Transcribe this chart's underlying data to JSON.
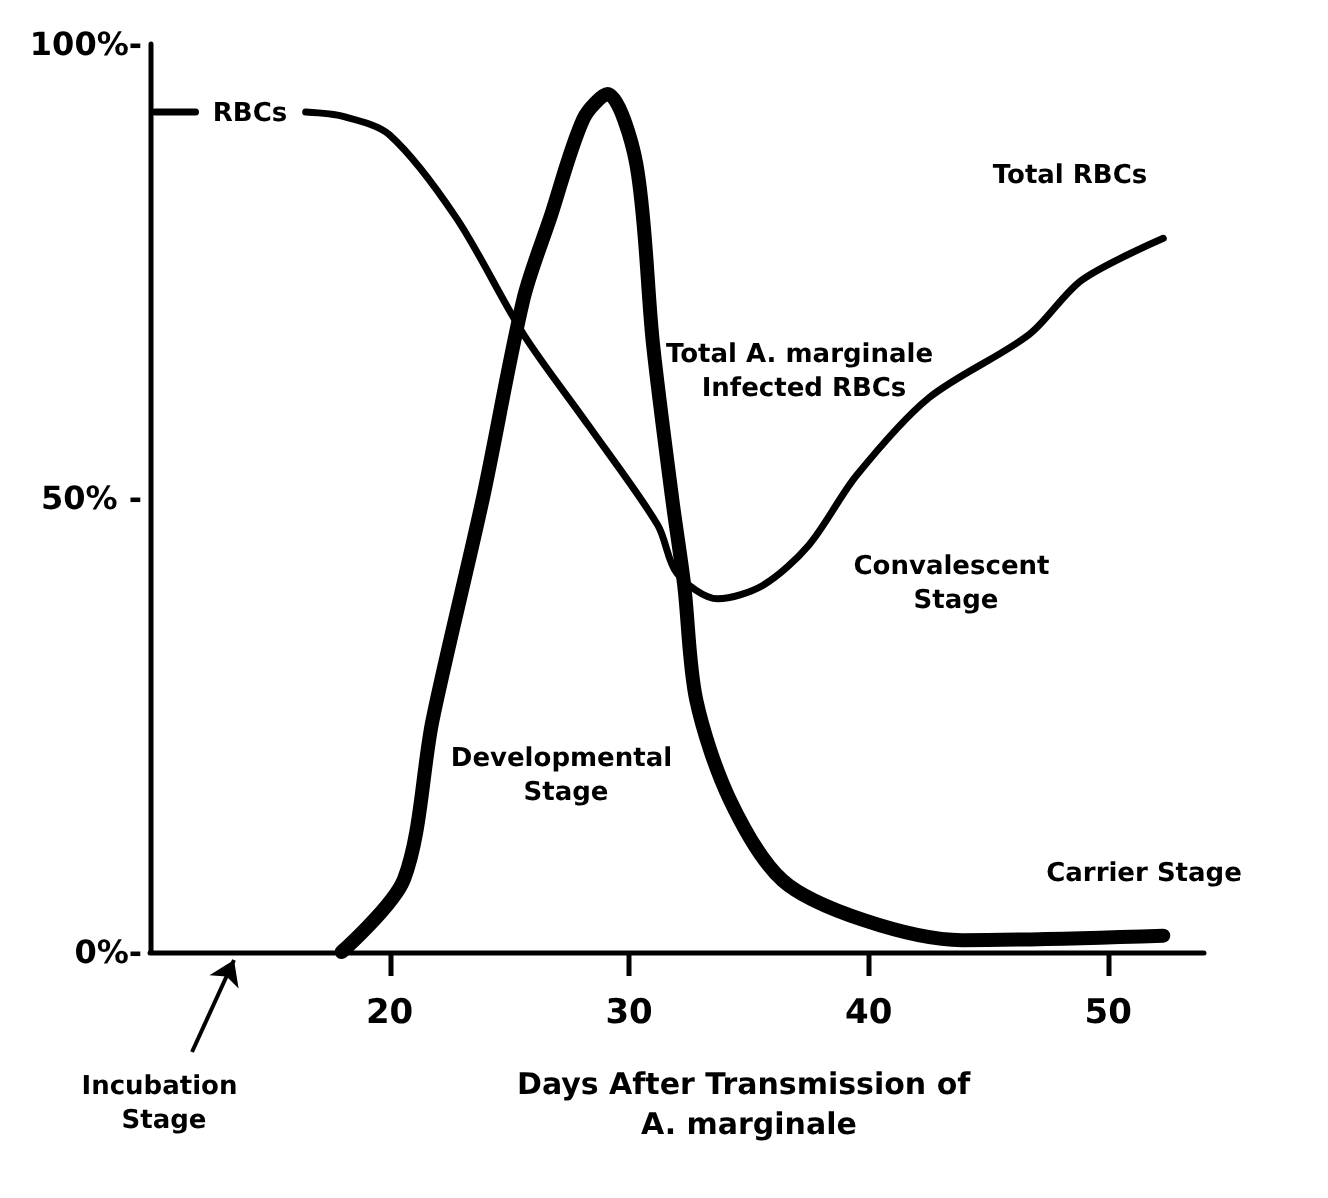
{
  "chart_data": {
    "type": "line",
    "xlabel": "Days After Transmission of A. marginale",
    "x": [
      10.2,
      11.9,
      14,
      16.5,
      18.1,
      20,
      22.8,
      25.6,
      28.3,
      31.2,
      32,
      33.7,
      35.6,
      37.5,
      39.5,
      42.5,
      46.7,
      48.9,
      52.3
    ],
    "series": [
      {
        "color": "#000000",
        "values": [
          92.5,
          92.5,
          null,
          92.5,
          92,
          90,
          80.8,
          68,
          58,
          47,
          41.7,
          38.9,
          40.4,
          44.8,
          52.5,
          61,
          68,
          74,
          78.6
        ]
      },
      {
        "color": "#000000",
        "x": [
          18,
          20.6,
          21.8,
          23.9,
          25.6,
          26.7,
          28.1,
          29.1,
          30.3,
          31,
          31.8,
          32.3,
          32.8,
          34.2,
          36.4,
          39.8,
          43.9,
          52.3
        ],
        "values": [
          0,
          8,
          25.6,
          50,
          72,
          80.8,
          91.8,
          94.5,
          86.8,
          66.9,
          49.9,
          40.4,
          27.8,
          16.8,
          7.9,
          3.5,
          1.3,
          1.8
        ]
      }
    ],
    "annotations": [
      "RBCs",
      "Total RBCs",
      "Total A. marginale Infected RBCs",
      "Developmental Stage",
      "Convalescent Stage",
      "Carrier Stage",
      "Incubation Stage"
    ],
    "xlim": [
      10,
      54
    ],
    "xticks": [
      20,
      30,
      40,
      50
    ],
    "ylim": [
      0,
      100
    ],
    "yticks": [
      {
        "value": 0,
        "label": "0%-"
      },
      {
        "value": 50,
        "label": "50% -"
      },
      {
        "value": 100,
        "label": "100%-"
      }
    ],
    "grid": false,
    "marker": "none",
    "line_style": "solid"
  }
}
